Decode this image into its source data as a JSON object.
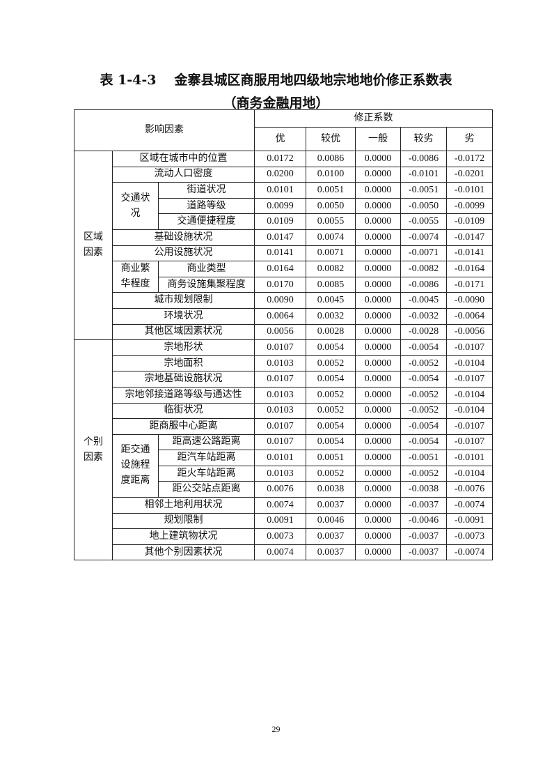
{
  "title": {
    "number": "表 1-4-3",
    "text": "金寨县城区商服用地四级地宗地地价修正系数表"
  },
  "subtitle": "（商务金融用地）",
  "table": {
    "factor_header": "影响因素",
    "coef_header": "修正系数",
    "levels": [
      "优",
      "较优",
      "一般",
      "较劣",
      "劣"
    ],
    "groups": [
      {
        "name": "区域\n因素",
        "rows": [
          {
            "label": "区域在城市中的位置",
            "values": [
              "0.0172",
              "0.0086",
              "0.0000",
              "-0.0086",
              "-0.0172"
            ]
          },
          {
            "label": "流动人口密度",
            "values": [
              "0.0200",
              "0.0100",
              "0.0000",
              "-0.0101",
              "-0.0201"
            ]
          },
          {
            "sub": "交通状\n况",
            "label": "街道状况",
            "values": [
              "0.0101",
              "0.0051",
              "0.0000",
              "-0.0051",
              "-0.0101"
            ]
          },
          {
            "sub": "交通状\n况",
            "label": "道路等级",
            "values": [
              "0.0099",
              "0.0050",
              "0.0000",
              "-0.0050",
              "-0.0099"
            ]
          },
          {
            "sub": "交通状\n况",
            "label": "交通便捷程度",
            "values": [
              "0.0109",
              "0.0055",
              "0.0000",
              "-0.0055",
              "-0.0109"
            ]
          },
          {
            "label": "基础设施状况",
            "values": [
              "0.0147",
              "0.0074",
              "0.0000",
              "-0.0074",
              "-0.0147"
            ]
          },
          {
            "label": "公用设施状况",
            "values": [
              "0.0141",
              "0.0071",
              "0.0000",
              "-0.0071",
              "-0.0141"
            ]
          },
          {
            "sub": "商业繁\n华程度",
            "label": "商业类型",
            "values": [
              "0.0164",
              "0.0082",
              "0.0000",
              "-0.0082",
              "-0.0164"
            ]
          },
          {
            "sub": "商业繁\n华程度",
            "label": "商务设施集聚程度",
            "values": [
              "0.0170",
              "0.0085",
              "0.0000",
              "-0.0086",
              "-0.0171"
            ]
          },
          {
            "label": "城市规划限制",
            "values": [
              "0.0090",
              "0.0045",
              "0.0000",
              "-0.0045",
              "-0.0090"
            ]
          },
          {
            "label": "环境状况",
            "values": [
              "0.0064",
              "0.0032",
              "0.0000",
              "-0.0032",
              "-0.0064"
            ]
          },
          {
            "label": "其他区域因素状况",
            "values": [
              "0.0056",
              "0.0028",
              "0.0000",
              "-0.0028",
              "-0.0056"
            ]
          }
        ]
      },
      {
        "name": "个别\n因素",
        "rows": [
          {
            "label": "宗地形状",
            "values": [
              "0.0107",
              "0.0054",
              "0.0000",
              "-0.0054",
              "-0.0107"
            ]
          },
          {
            "label": "宗地面积",
            "values": [
              "0.0103",
              "0.0052",
              "0.0000",
              "-0.0052",
              "-0.0104"
            ]
          },
          {
            "label": "宗地基础设施状况",
            "values": [
              "0.0107",
              "0.0054",
              "0.0000",
              "-0.0054",
              "-0.0107"
            ]
          },
          {
            "label": "宗地邻接道路等级与通达性",
            "values": [
              "0.0103",
              "0.0052",
              "0.0000",
              "-0.0052",
              "-0.0104"
            ]
          },
          {
            "label": "临街状况",
            "values": [
              "0.0103",
              "0.0052",
              "0.0000",
              "-0.0052",
              "-0.0104"
            ]
          },
          {
            "label": "距商服中心距离",
            "values": [
              "0.0107",
              "0.0054",
              "0.0000",
              "-0.0054",
              "-0.0107"
            ]
          },
          {
            "sub": "距交通\n设施程\n度距离",
            "label": "距高速公路距离",
            "values": [
              "0.0107",
              "0.0054",
              "0.0000",
              "-0.0054",
              "-0.0107"
            ]
          },
          {
            "sub": "距交通\n设施程\n度距离",
            "label": "距汽车站距离",
            "values": [
              "0.0101",
              "0.0051",
              "0.0000",
              "-0.0051",
              "-0.0101"
            ]
          },
          {
            "sub": "距交通\n设施程\n度距离",
            "label": "距火车站距离",
            "values": [
              "0.0103",
              "0.0052",
              "0.0000",
              "-0.0052",
              "-0.0104"
            ]
          },
          {
            "sub": "距交通\n设施程\n度距离",
            "label": "距公交站点距离",
            "values": [
              "0.0076",
              "0.0038",
              "0.0000",
              "-0.0038",
              "-0.0076"
            ]
          },
          {
            "label": "相邻土地利用状况",
            "values": [
              "0.0074",
              "0.0037",
              "0.0000",
              "-0.0037",
              "-0.0074"
            ]
          },
          {
            "label": "规划限制",
            "values": [
              "0.0091",
              "0.0046",
              "0.0000",
              "-0.0046",
              "-0.0091"
            ]
          },
          {
            "label": "地上建筑物状况",
            "values": [
              "0.0073",
              "0.0037",
              "0.0000",
              "-0.0037",
              "-0.0073"
            ]
          },
          {
            "label": "其他个别因素状况",
            "values": [
              "0.0074",
              "0.0037",
              "0.0000",
              "-0.0037",
              "-0.0074"
            ]
          }
        ]
      }
    ]
  },
  "page_number": "29"
}
